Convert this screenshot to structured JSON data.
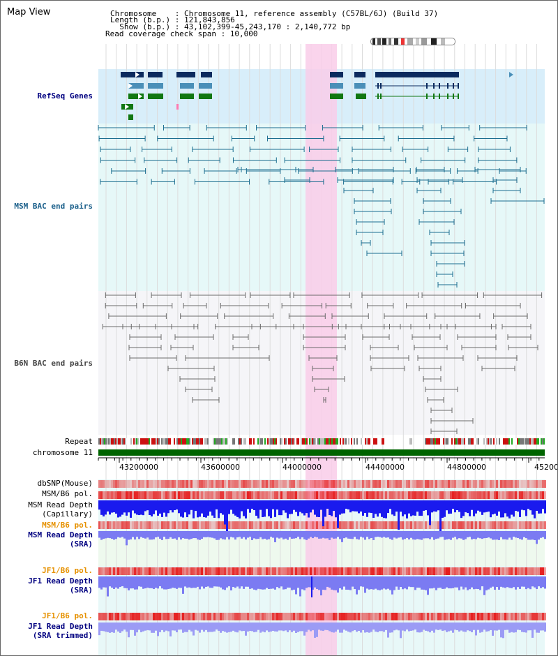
{
  "panel_title": "Map View",
  "info": {
    "line1": "Chromosome    : Chromosome 11, reference assembly (C57BL/6J) (Build 37)",
    "line2": "Length (b.p.) : 121,843,856",
    "line3": "  Show (b.p.) : 43,102,399-45,243,170 : 2,140,772 bp",
    "line4": "Read coverage check span : 10,000"
  },
  "tracks": {
    "refseq": "RefSeq Genes",
    "msm_bac": "MSM BAC end pairs",
    "b6n_bac": "B6N BAC end pairs",
    "repeat": "Repeat",
    "chromosome": "chromosome 11",
    "dbsnp": "dbSNP(Mouse)",
    "msm_pol": "MSM/B6 pol.",
    "msm_depth_cap_1": "MSM Read Depth",
    "msm_depth_cap_2": "(Capillary)",
    "msm_pol2": "MSM/B6 pol.",
    "msm_depth_sra_1": "MSM Read Depth",
    "msm_depth_sra_2": "(SRA)",
    "jf1_pol": "JF1/B6 pol.",
    "jf1_depth_1": "JF1 Read Depth",
    "jf1_depth_2": "(SRA)",
    "jf1_pol2": "JF1/B6 pol.",
    "jf1_trim_1": "JF1 Read Depth",
    "jf1_trim_2": "(SRA trimmed)"
  },
  "axis": {
    "ticks": [
      "43200000",
      "43600000",
      "44000000",
      "44400000",
      "44800000",
      "45200"
    ]
  },
  "colors": {
    "highlight": "#f9cce9",
    "refseq_bg": "#d8eefa",
    "msm_bg": "#e6f8f8",
    "b6n_bg": "#f5f5f8",
    "chromosome": "#006400",
    "depth_blue": "#1a1aee",
    "depth_light": "#7b7bf2"
  }
}
